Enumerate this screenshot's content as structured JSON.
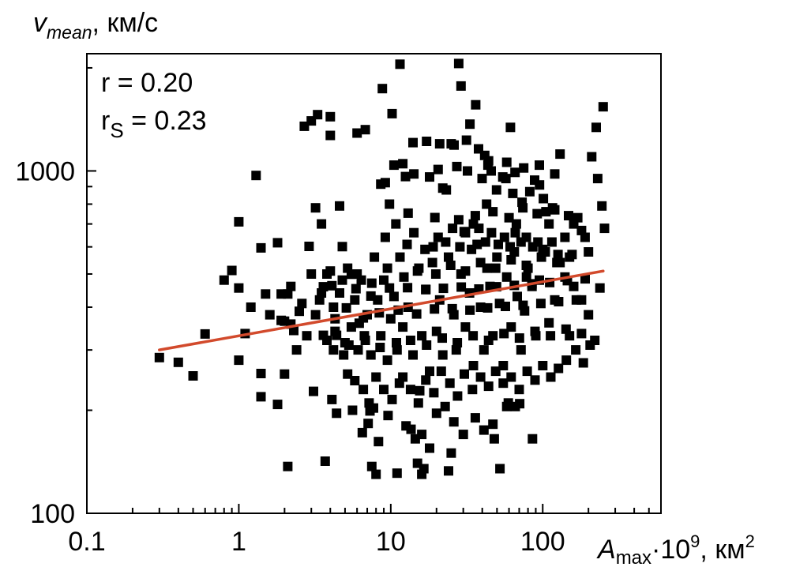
{
  "chart_data": {
    "type": "scatter",
    "title": "",
    "ylabel": {
      "main": "v",
      "sub": "mean",
      "unit": ", км/с"
    },
    "xlabel": {
      "main": "A",
      "sub": "max",
      "mult": "·10",
      "exp": "9",
      "unit": ", км",
      "unit_exp": "2"
    },
    "x_scale": "log",
    "y_scale": "log",
    "xlim": [
      0.1,
      600
    ],
    "ylim": [
      100,
      2200
    ],
    "x_ticks": [
      {
        "value": 0.1,
        "label": "0.1"
      },
      {
        "value": 1,
        "label": "1"
      },
      {
        "value": 10,
        "label": "10"
      },
      {
        "value": 100,
        "label": "100"
      }
    ],
    "y_ticks": [
      {
        "value": 100,
        "label": "100"
      },
      {
        "value": 1000,
        "label": "1000"
      }
    ],
    "grid": false,
    "annotations": {
      "r_text": "r = 0.20",
      "rs_main": "r",
      "rs_sub": "S",
      "rs_value": " = 0.23"
    },
    "fit_line": {
      "color": "#d24a2c",
      "x": [
        0.3,
        250
      ],
      "y": [
        300,
        510
      ]
    },
    "marker_color": "#000000",
    "points": [
      [
        0.3,
        285
      ],
      [
        0.4,
        276
      ],
      [
        0.5,
        252
      ],
      [
        0.6,
        334
      ],
      [
        0.8,
        480
      ],
      [
        0.9,
        512
      ],
      [
        1.0,
        280
      ],
      [
        1.0,
        455
      ],
      [
        1.0,
        710
      ],
      [
        1.1,
        335
      ],
      [
        1.3,
        970
      ],
      [
        1.4,
        596
      ],
      [
        1.4,
        256
      ],
      [
        1.4,
        219
      ],
      [
        1.5,
        437
      ],
      [
        1.8,
        208
      ],
      [
        1.8,
        617
      ],
      [
        1.9,
        366
      ],
      [
        2.0,
        364
      ],
      [
        2.0,
        255
      ],
      [
        2.1,
        137
      ],
      [
        2.1,
        437
      ],
      [
        2.2,
        357
      ],
      [
        2.7,
        1350
      ],
      [
        2.9,
        602
      ],
      [
        3.0,
        1400
      ],
      [
        3.1,
        227
      ],
      [
        3.3,
        1460
      ],
      [
        3.2,
        780
      ],
      [
        3.4,
        420
      ],
      [
        3.5,
        700
      ],
      [
        3.6,
        331
      ],
      [
        3.7,
        142
      ],
      [
        3.8,
        500
      ],
      [
        4.0,
        1440
      ],
      [
        4.0,
        1270
      ],
      [
        4.1,
        215
      ],
      [
        4.1,
        462
      ],
      [
        4.2,
        400
      ],
      [
        4.3,
        340
      ],
      [
        4.4,
        196
      ],
      [
        4.6,
        790
      ],
      [
        4.8,
        601
      ],
      [
        5.0,
        315
      ],
      [
        5.2,
        255
      ],
      [
        5.5,
        499
      ],
      [
        5.8,
        244
      ],
      [
        6.0,
        1290
      ],
      [
        6.2,
        359
      ],
      [
        6.5,
        172
      ],
      [
        6.8,
        1320
      ],
      [
        7.1,
        183
      ],
      [
        7.3,
        199
      ],
      [
        7.5,
        137
      ],
      [
        7.7,
        203
      ],
      [
        8.0,
        130
      ],
      [
        8.3,
        162
      ],
      [
        8.6,
        915
      ],
      [
        8.8,
        1740
      ],
      [
        9.2,
        924
      ],
      [
        9.6,
        193
      ],
      [
        9.8,
        800
      ],
      [
        10.2,
        1470
      ],
      [
        10.5,
        1040
      ],
      [
        11,
        131
      ],
      [
        11.5,
        2050
      ],
      [
        12,
        1050
      ],
      [
        12.5,
        963
      ],
      [
        13.0,
        753
      ],
      [
        13.6,
        176
      ],
      [
        14,
        1210
      ],
      [
        15.0,
        140
      ],
      [
        15.5,
        228
      ],
      [
        16,
        130
      ],
      [
        16.5,
        135
      ],
      [
        17.2,
        1220
      ],
      [
        18.0,
        960
      ],
      [
        19.5,
        731
      ],
      [
        21,
        1200
      ],
      [
        22.0,
        891
      ],
      [
        23.2,
        880
      ],
      [
        24,
        133
      ],
      [
        25.0,
        1200
      ],
      [
        26.1,
        1190
      ],
      [
        27.2,
        1030
      ],
      [
        28,
        2060
      ],
      [
        29.0,
        1770
      ],
      [
        30.4,
        665
      ],
      [
        31.5,
        1230
      ],
      [
        33.2,
        1370
      ],
      [
        35.0,
        700
      ],
      [
        36.2,
        1560
      ],
      [
        37.8,
        1160
      ],
      [
        39.9,
        950
      ],
      [
        41.5,
        1110
      ],
      [
        42.7,
        800
      ],
      [
        43.6,
        1040
      ],
      [
        45.8,
        1000
      ],
      [
        47.0,
        182
      ],
      [
        49.7,
        880
      ],
      [
        52.3,
        135
      ],
      [
        54.6,
        960
      ],
      [
        57.2,
        950
      ],
      [
        59.4,
        210
      ],
      [
        61.3,
        1340
      ],
      [
        63.6,
        860
      ],
      [
        65.7,
        990
      ],
      [
        67.1,
        700
      ],
      [
        70.5,
        209
      ],
      [
        73.1,
        810
      ],
      [
        78.2,
        490
      ],
      [
        82.2,
        870
      ],
      [
        85.6,
        165
      ],
      [
        88.4,
        940
      ],
      [
        95.2,
        910
      ],
      [
        101.0,
        830
      ],
      [
        105,
        760
      ],
      [
        110,
        700
      ],
      [
        120,
        770
      ],
      [
        130,
        1120
      ],
      [
        140,
        640
      ],
      [
        150,
        560
      ],
      [
        160,
        700
      ],
      [
        170,
        730
      ],
      [
        180,
        670
      ],
      [
        190,
        640
      ],
      [
        200,
        580
      ],
      [
        210,
        1100
      ],
      [
        225,
        1340
      ],
      [
        230,
        950
      ],
      [
        238,
        455
      ],
      [
        245,
        790
      ],
      [
        250,
        1540
      ],
      [
        255,
        680
      ],
      [
        220,
        320
      ],
      [
        200,
        380
      ],
      [
        180,
        420
      ],
      [
        160,
        460
      ],
      [
        150,
        330
      ],
      [
        140,
        490
      ],
      [
        130,
        540
      ],
      [
        120,
        420
      ],
      [
        110,
        360
      ],
      [
        100,
        590
      ],
      [
        95,
        480
      ],
      [
        90,
        330
      ],
      [
        85,
        460
      ],
      [
        80,
        520
      ],
      [
        76,
        390
      ],
      [
        72,
        300
      ],
      [
        68,
        430
      ],
      [
        65,
        580
      ],
      [
        62,
        350
      ],
      [
        58,
        490
      ],
      [
        55,
        270
      ],
      [
        52,
        410
      ],
      [
        50,
        560
      ],
      [
        47,
        330
      ],
      [
        45,
        460
      ],
      [
        43,
        520
      ],
      [
        41,
        300
      ],
      [
        39,
        400
      ],
      [
        37,
        610
      ],
      [
        35,
        270
      ],
      [
        33,
        440
      ],
      [
        31,
        350
      ],
      [
        29,
        500
      ],
      [
        27,
        300
      ],
      [
        26,
        380
      ],
      [
        24,
        560
      ],
      [
        22,
        290
      ],
      [
        21,
        420
      ],
      [
        20,
        340
      ],
      [
        19,
        600
      ],
      [
        18,
        260
      ],
      [
        17,
        450
      ],
      [
        16,
        330
      ],
      [
        15,
        510
      ],
      [
        14,
        290
      ],
      [
        13,
        400
      ],
      [
        12,
        350
      ],
      [
        11.5,
        560
      ],
      [
        11,
        300
      ],
      [
        10.5,
        430
      ],
      [
        10,
        370
      ],
      [
        9.5,
        280
      ],
      [
        9,
        480
      ],
      [
        8.6,
        330
      ],
      [
        8.2,
        420
      ],
      [
        7.8,
        560
      ],
      [
        7.4,
        290
      ],
      [
        7.0,
        380
      ],
      [
        6.7,
        330
      ],
      [
        6.4,
        480
      ],
      [
        6.1,
        300
      ],
      [
        5.8,
        420
      ],
      [
        5.5,
        350
      ],
      [
        5.2,
        520
      ],
      [
        4.9,
        290
      ],
      [
        4.6,
        440
      ],
      [
        4.3,
        370
      ],
      [
        4.0,
        510
      ],
      [
        3.8,
        320
      ],
      [
        3.5,
        440
      ],
      [
        3.2,
        380
      ],
      [
        3.0,
        500
      ],
      [
        2.8,
        330
      ],
      [
        2.6,
        410
      ],
      [
        2.4,
        300
      ],
      [
        2.2,
        460
      ],
      [
        1.2,
        400
      ],
      [
        1.6,
        380
      ],
      [
        9.2,
        640
      ],
      [
        10.8,
        700
      ],
      [
        12.8,
        610
      ],
      [
        14.2,
        660
      ],
      [
        16.8,
        590
      ],
      [
        18.8,
        540
      ],
      [
        20.5,
        640
      ],
      [
        23.0,
        620
      ],
      [
        25.5,
        680
      ],
      [
        28.5,
        600
      ],
      [
        31.0,
        660
      ],
      [
        34.0,
        590
      ],
      [
        38.0,
        680
      ],
      [
        42.0,
        620
      ],
      [
        46.0,
        660
      ],
      [
        51.0,
        610
      ],
      [
        56.0,
        640
      ],
      [
        61.0,
        600
      ],
      [
        66.0,
        660
      ],
      [
        72.0,
        620
      ],
      [
        78.0,
        640
      ],
      [
        86.0,
        600
      ],
      [
        93.0,
        620
      ],
      [
        104.0,
        580
      ],
      [
        115.0,
        620
      ],
      [
        126.0,
        570
      ],
      [
        12.0,
        250
      ],
      [
        13.5,
        230
      ],
      [
        15.2,
        210
      ],
      [
        17.0,
        245
      ],
      [
        19.2,
        225
      ],
      [
        21.5,
        260
      ],
      [
        24.5,
        240
      ],
      [
        27.5,
        220
      ],
      [
        30.5,
        255
      ],
      [
        34.5,
        230
      ],
      [
        39.0,
        250
      ],
      [
        44.0,
        235
      ],
      [
        49.0,
        260
      ],
      [
        55.0,
        240
      ],
      [
        62.0,
        250
      ],
      [
        70.0,
        230
      ],
      [
        79.0,
        260
      ],
      [
        89.0,
        245
      ],
      [
        100,
        270
      ],
      [
        113,
        250
      ],
      [
        127,
        265
      ],
      [
        143,
        280
      ],
      [
        165,
        300
      ],
      [
        185,
        275
      ],
      [
        205,
        310
      ],
      [
        8.0,
        250
      ],
      [
        9.0,
        230
      ],
      [
        10.2,
        215
      ],
      [
        11.4,
        240
      ],
      [
        6.6,
        230
      ],
      [
        5.6,
        200
      ],
      [
        7.2,
        210
      ],
      [
        20.0,
        196
      ],
      [
        22.8,
        205
      ],
      [
        26.0,
        185
      ],
      [
        16.0,
        170
      ],
      [
        18.0,
        155
      ],
      [
        14.5,
        165
      ],
      [
        12.6,
        180
      ],
      [
        25.0,
        150
      ],
      [
        30.0,
        170
      ],
      [
        36.0,
        190
      ],
      [
        41.0,
        175
      ],
      [
        48.0,
        165
      ],
      [
        58.0,
        205
      ],
      [
        66.0,
        205
      ],
      [
        1.9,
        437
      ],
      [
        2.3,
        342
      ],
      [
        2.5,
        389
      ],
      [
        3.6,
        459
      ],
      [
        4.4,
        331
      ],
      [
        5.1,
        398
      ],
      [
        5.9,
        453
      ],
      [
        6.6,
        372
      ],
      [
        7.4,
        431
      ],
      [
        8.4,
        385
      ],
      [
        9.8,
        455
      ],
      [
        11.2,
        392
      ],
      [
        12.9,
        456
      ],
      [
        14.8,
        382
      ],
      [
        17.0,
        451
      ],
      [
        19.4,
        395
      ],
      [
        22.2,
        454
      ],
      [
        25.4,
        396
      ],
      [
        29.1,
        458
      ],
      [
        33.2,
        392
      ],
      [
        38.0,
        452
      ],
      [
        43.4,
        398
      ],
      [
        49.7,
        459
      ],
      [
        56.8,
        402
      ],
      [
        65.0,
        463
      ],
      [
        74.3,
        405
      ],
      [
        85.0,
        468
      ],
      [
        97.2,
        410
      ],
      [
        111.2,
        472
      ],
      [
        127.2,
        415
      ],
      [
        145.4,
        478
      ],
      [
        166.3,
        420
      ],
      [
        190.2,
        484
      ],
      [
        4.8,
        480
      ],
      [
        6.0,
        500
      ],
      [
        7.5,
        470
      ],
      [
        9.5,
        520
      ],
      [
        12.2,
        490
      ],
      [
        15.3,
        520
      ],
      [
        19.8,
        500
      ],
      [
        24.8,
        530
      ],
      [
        31.0,
        510
      ],
      [
        39.0,
        540
      ],
      [
        49.0,
        520
      ],
      [
        62.0,
        550
      ],
      [
        78.0,
        530
      ],
      [
        98.0,
        560
      ],
      [
        124.0,
        540
      ],
      [
        156.0,
        570
      ],
      [
        4.2,
        300
      ],
      [
        5.3,
        310
      ],
      [
        6.8,
        320
      ],
      [
        8.5,
        305
      ],
      [
        10.9,
        315
      ],
      [
        13.5,
        320
      ],
      [
        17.2,
        310
      ],
      [
        21.8,
        325
      ],
      [
        27.4,
        315
      ],
      [
        34.8,
        330
      ],
      [
        44.0,
        320
      ],
      [
        55.6,
        335
      ],
      [
        70.3,
        325
      ],
      [
        89.0,
        340
      ],
      [
        112.5,
        330
      ],
      [
        142.4,
        345
      ],
      [
        180,
        335
      ],
      [
        28.0,
        720
      ],
      [
        36.0,
        740
      ],
      [
        47.0,
        760
      ],
      [
        60.0,
        730
      ],
      [
        74.0,
        780
      ],
      [
        92.0,
        750
      ],
      [
        116.0,
        780
      ],
      [
        148.0,
        740
      ],
      [
        58.0,
        1060
      ],
      [
        75.0,
        1020
      ],
      [
        95.0,
        1040
      ],
      [
        120.0,
        980
      ],
      [
        44.0,
        1070
      ],
      [
        32.0,
        1000
      ],
      [
        20.5,
        1010
      ],
      [
        14.2,
        980
      ]
    ]
  }
}
